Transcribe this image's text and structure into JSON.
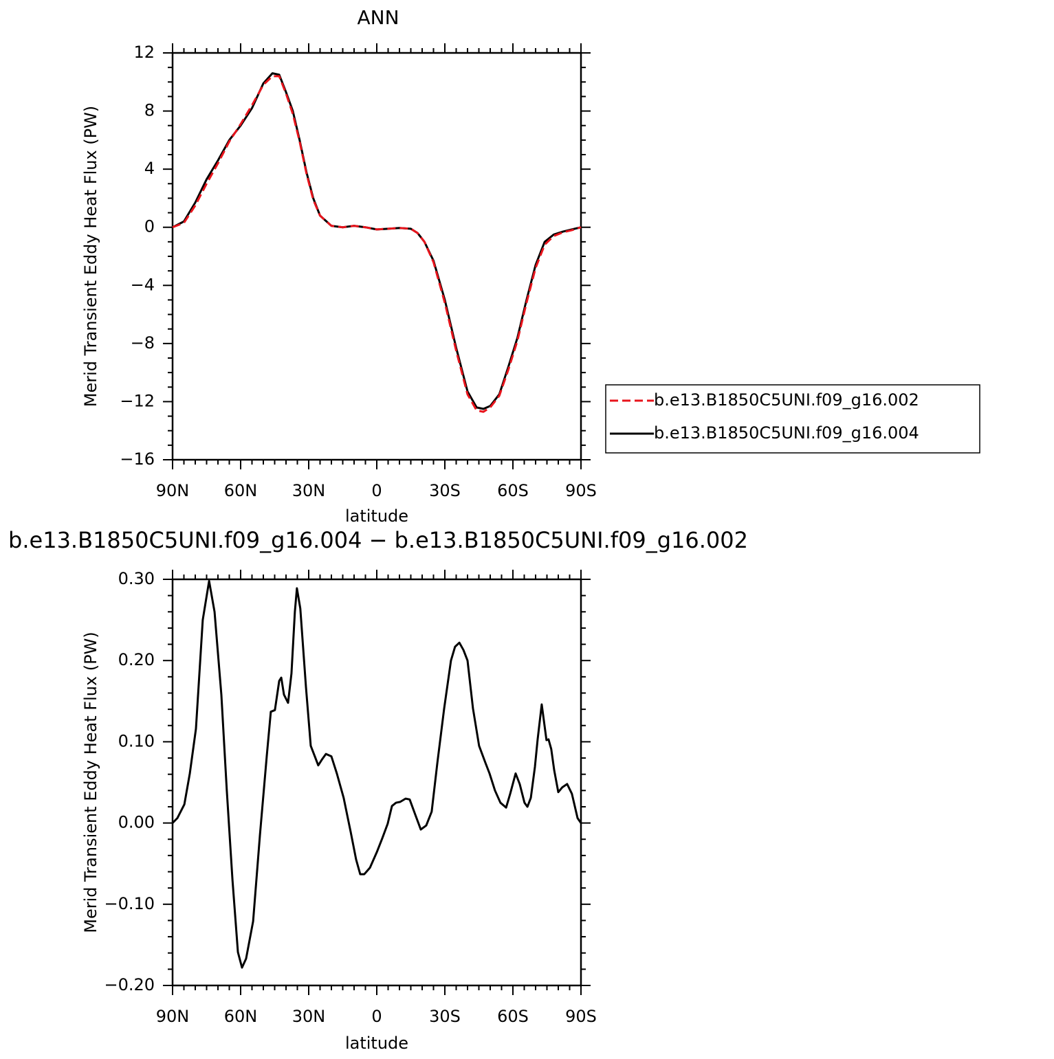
{
  "chart_data": [
    {
      "type": "line",
      "title": "ANN",
      "xlabel": "latitude",
      "ylabel": "Merid Transient Eddy Heat Flux (PW)",
      "x": [
        90,
        85,
        80,
        75,
        70,
        65,
        60,
        55,
        50,
        46,
        43,
        40,
        37,
        34,
        31,
        28,
        25,
        20,
        15,
        10,
        5,
        0,
        -5,
        -10,
        -15,
        -18,
        -21,
        -25,
        -30,
        -35,
        -40,
        -44,
        -47,
        -50,
        -54,
        -58,
        -62,
        -66,
        -70,
        -74,
        -78,
        -82,
        -86,
        -90
      ],
      "series": [
        {
          "name": "b.e13.B1850C5UNI.f09_g16.002",
          "color": "#e8141c",
          "dashed": true,
          "values": [
            0,
            0.3,
            1.5,
            3.0,
            4.4,
            5.9,
            7.1,
            8.4,
            9.8,
            10.4,
            10.4,
            9.2,
            7.8,
            5.9,
            3.7,
            1.9,
            0.8,
            0.1,
            0,
            0.1,
            0,
            -0.15,
            -0.1,
            -0.05,
            -0.1,
            -0.4,
            -1.0,
            -2.4,
            -5.2,
            -8.5,
            -11.5,
            -12.6,
            -12.7,
            -12.4,
            -11.6,
            -9.8,
            -7.8,
            -5.2,
            -2.8,
            -1.2,
            -0.6,
            -0.35,
            -0.2,
            0
          ]
        },
        {
          "name": "b.e13.B1850C5UNI.f09_g16.004",
          "color": "#000000",
          "dashed": false,
          "values": [
            0,
            0.4,
            1.7,
            3.3,
            4.6,
            6.0,
            7.0,
            8.2,
            9.9,
            10.6,
            10.5,
            9.3,
            8.0,
            6.0,
            3.8,
            2.0,
            0.8,
            0.1,
            0,
            0.1,
            0,
            -0.15,
            -0.1,
            -0.05,
            -0.1,
            -0.4,
            -1.0,
            -2.3,
            -5.0,
            -8.3,
            -11.3,
            -12.4,
            -12.5,
            -12.3,
            -11.5,
            -9.6,
            -7.6,
            -5.0,
            -2.6,
            -1.0,
            -0.5,
            -0.3,
            -0.15,
            0
          ]
        }
      ],
      "xlim": [
        90,
        -90
      ],
      "xticks": [
        {
          "value": 90,
          "label": "90N"
        },
        {
          "value": 60,
          "label": "60N"
        },
        {
          "value": 30,
          "label": "30N"
        },
        0,
        {
          "value": -30,
          "label": "30S"
        },
        {
          "value": -60,
          "label": "60S"
        },
        {
          "value": -90,
          "label": "90S"
        }
      ],
      "ylim": [
        -16,
        12
      ],
      "yticks": [
        {
          "value": -16,
          "label": "−16"
        },
        {
          "value": -12,
          "label": "−12"
        },
        {
          "value": -8,
          "label": "−8"
        },
        {
          "value": -4,
          "label": "−4"
        },
        0,
        4,
        8,
        12
      ],
      "legend": "right"
    },
    {
      "type": "line",
      "title": "b.e13.B1850C5UNI.f09_g16.004 − b.e13.B1850C5UNI.f09_g16.002",
      "xlabel": "latitude",
      "ylabel": "Merid Transient Eddy Heat Flux (PW)",
      "x": [
        90,
        87.9,
        84.8,
        82.4,
        79.7,
        76.7,
        73.9,
        71.5,
        68.5,
        66.1,
        63.6,
        61.2,
        59.4,
        57.6,
        54.5,
        51.5,
        48.5,
        46.7,
        44.9,
        43.0,
        42.1,
        40.9,
        39.1,
        37.6,
        36.1,
        35.2,
        33.7,
        31.2,
        29.1,
        27.3,
        25.8,
        24.2,
        22.4,
        20.0,
        17.6,
        14.6,
        11.5,
        9.1,
        7.3,
        5.5,
        3.0,
        0,
        -2.4,
        -4.8,
        -6.7,
        -8.5,
        -10.3,
        -12.7,
        -14.5,
        -17.0,
        -19.4,
        -21.8,
        -24.2,
        -26.7,
        -29.7,
        -32.7,
        -34.5,
        -36.4,
        -38.2,
        -40.0,
        -42.4,
        -45.1,
        -47.9,
        -49.7,
        -52.1,
        -54.5,
        -57.0,
        -58.8,
        -61.2,
        -63.0,
        -65.1,
        -66.4,
        -67.9,
        -69.7,
        -70.9,
        -72.7,
        -74.8,
        -75.7,
        -76.9,
        -78.2,
        -80.0,
        -81.8,
        -83.9,
        -86.0,
        -88.5,
        -90
      ],
      "color": "#000000",
      "values": [
        0,
        0.006,
        0.023,
        0.061,
        0.116,
        0.25,
        0.298,
        0.26,
        0.158,
        0.04,
        -0.07,
        -0.159,
        -0.178,
        -0.167,
        -0.121,
        -0.015,
        0.082,
        0.137,
        0.139,
        0.175,
        0.179,
        0.158,
        0.148,
        0.184,
        0.26,
        0.289,
        0.264,
        0.167,
        0.095,
        0.082,
        0.071,
        0.078,
        0.085,
        0.082,
        0.061,
        0.031,
        -0.011,
        -0.045,
        -0.063,
        -0.063,
        -0.055,
        -0.036,
        -0.019,
        -0.001,
        0.021,
        0.025,
        0.026,
        0.03,
        0.029,
        0.01,
        -0.008,
        -0.003,
        0.014,
        0.074,
        0.141,
        0.2,
        0.217,
        0.222,
        0.213,
        0.2,
        0.141,
        0.095,
        0.074,
        0.061,
        0.04,
        0.025,
        0.019,
        0.036,
        0.061,
        0.048,
        0.025,
        0.02,
        0.031,
        0.069,
        0.103,
        0.146,
        0.102,
        0.103,
        0.091,
        0.065,
        0.038,
        0.044,
        0.048,
        0.036,
        0.006,
        0
      ],
      "xlim": [
        90,
        -90
      ],
      "xticks": [
        {
          "value": 90,
          "label": "90N"
        },
        {
          "value": 60,
          "label": "60N"
        },
        {
          "value": 30,
          "label": "30N"
        },
        0,
        {
          "value": -30,
          "label": "30S"
        },
        {
          "value": -60,
          "label": "60S"
        },
        {
          "value": -90,
          "label": "90S"
        }
      ],
      "ylim": [
        -0.2,
        0.3
      ],
      "yticks": [
        {
          "value": -0.2,
          "label": "−0.20"
        },
        {
          "value": -0.1,
          "label": "−0.10"
        },
        {
          "value": 0,
          "label": "0.00"
        },
        {
          "value": 0.1,
          "label": "0.10"
        },
        {
          "value": 0.2,
          "label": "0.20"
        },
        {
          "value": 0.3,
          "label": "0.30"
        }
      ]
    }
  ]
}
